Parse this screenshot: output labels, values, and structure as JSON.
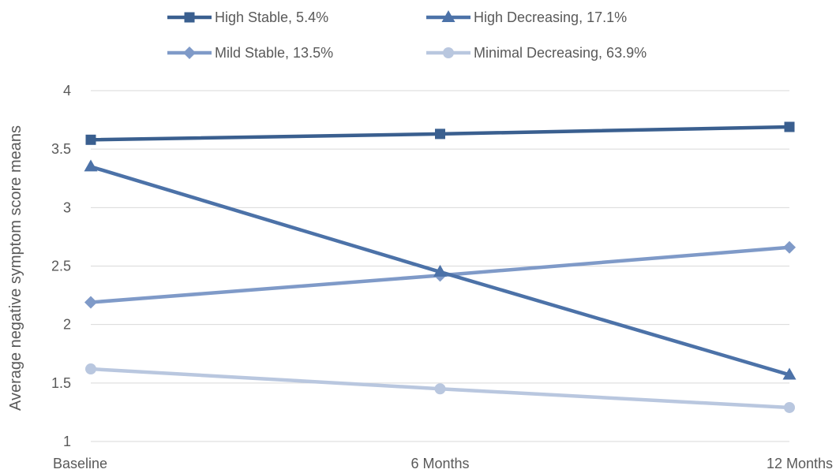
{
  "chart_data": {
    "type": "line",
    "categories": [
      "Baseline",
      "6 Months",
      "12 Months"
    ],
    "ylabel": "Average negative symptom score means",
    "xlabel": "",
    "ylim": [
      1,
      4
    ],
    "yticks": [
      "1",
      "1.5",
      "2",
      "2.5",
      "3",
      "3.5",
      "4"
    ],
    "grid": "horizontal",
    "legend_position": "top",
    "series": [
      {
        "name": "High Stable, 5.4%",
        "values": [
          3.58,
          3.63,
          3.69
        ],
        "color": "#3a5f8f",
        "marker": "square"
      },
      {
        "name": "High Decreasing, 17.1%",
        "values": [
          3.35,
          2.45,
          1.57
        ],
        "color": "#4c72a8",
        "marker": "triangle"
      },
      {
        "name": "Mild Stable, 13.5%",
        "values": [
          2.19,
          2.42,
          2.66
        ],
        "color": "#7f9ac8",
        "marker": "diamond"
      },
      {
        "name": "Minimal Decreasing, 63.9%",
        "values": [
          1.62,
          1.45,
          1.29
        ],
        "color": "#b9c7df",
        "marker": "circle"
      }
    ]
  }
}
